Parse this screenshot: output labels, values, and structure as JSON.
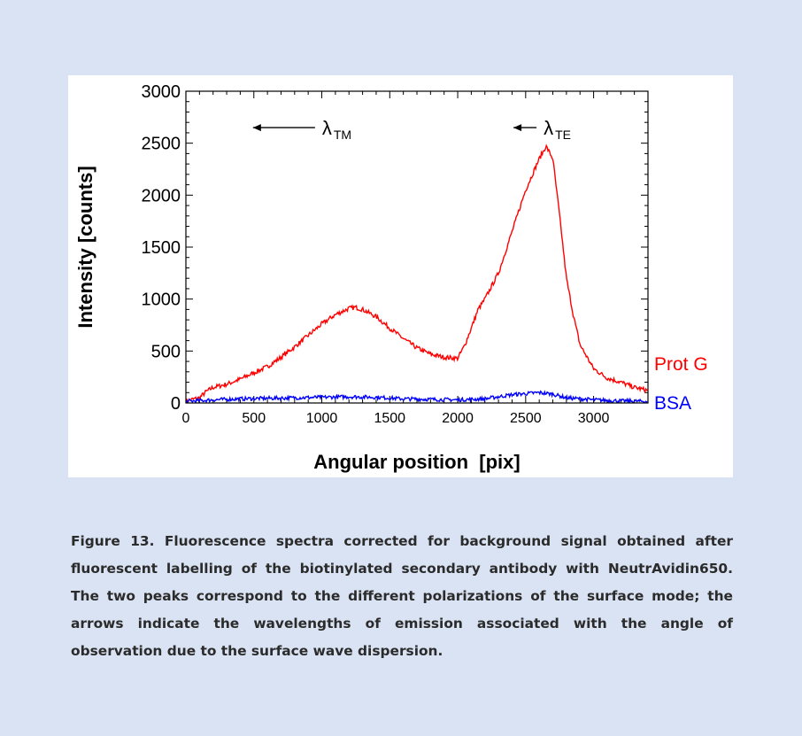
{
  "figure": {
    "caption": "Figure 13. Fluorescence spectra corrected for background signal obtained after fluorescent labelling of the biotinylated secondary antibody with NeutrAvidin650. The two peaks correspond to the different polarizations of the surface mode; the arrows indicate the wavelengths of emission associated with the angle of observation due to the surface wave dispersion."
  },
  "chart_data": {
    "type": "line",
    "xlabel": "Angular position  [pix]",
    "ylabel": "Intensity [counts]",
    "xlim": [
      0,
      3400
    ],
    "ylim": [
      0,
      3000
    ],
    "x_ticks": [
      0,
      500,
      1000,
      1500,
      2000,
      2500,
      3000
    ],
    "y_ticks": [
      0,
      500,
      1000,
      1500,
      2000,
      2500,
      3000
    ],
    "grid": false,
    "legend": "right",
    "annotations": [
      {
        "symbol": "λ",
        "subscript": "TM",
        "arrow": "left",
        "x": 950,
        "y": 2650
      },
      {
        "symbol": "λ",
        "subscript": "TE",
        "arrow": "left",
        "x": 2580,
        "y": 2650
      }
    ],
    "series": [
      {
        "name": "Prot G",
        "color": "#ff0000",
        "x": [
          0,
          100,
          150,
          200,
          300,
          400,
          500,
          600,
          700,
          800,
          900,
          1000,
          1100,
          1200,
          1250,
          1300,
          1400,
          1500,
          1600,
          1700,
          1800,
          1900,
          2000,
          2050,
          2100,
          2150,
          2200,
          2300,
          2400,
          2500,
          2600,
          2650,
          2700,
          2750,
          2800,
          2850,
          2900,
          3000,
          3100,
          3200,
          3300,
          3400
        ],
        "y": [
          20,
          50,
          110,
          150,
          180,
          230,
          290,
          350,
          440,
          540,
          650,
          760,
          850,
          910,
          920,
          900,
          830,
          720,
          620,
          530,
          470,
          440,
          430,
          550,
          720,
          900,
          1000,
          1250,
          1650,
          2050,
          2350,
          2470,
          2350,
          1800,
          1200,
          850,
          560,
          330,
          240,
          200,
          150,
          120
        ]
      },
      {
        "name": "BSA",
        "color": "#0000ff",
        "x": [
          0,
          200,
          400,
          600,
          800,
          1000,
          1200,
          1400,
          1600,
          1800,
          2000,
          2200,
          2400,
          2600,
          2700,
          2800,
          3000,
          3200,
          3400
        ],
        "y": [
          15,
          30,
          40,
          45,
          50,
          55,
          60,
          55,
          40,
          35,
          30,
          40,
          80,
          100,
          85,
          50,
          30,
          20,
          15
        ]
      }
    ]
  }
}
